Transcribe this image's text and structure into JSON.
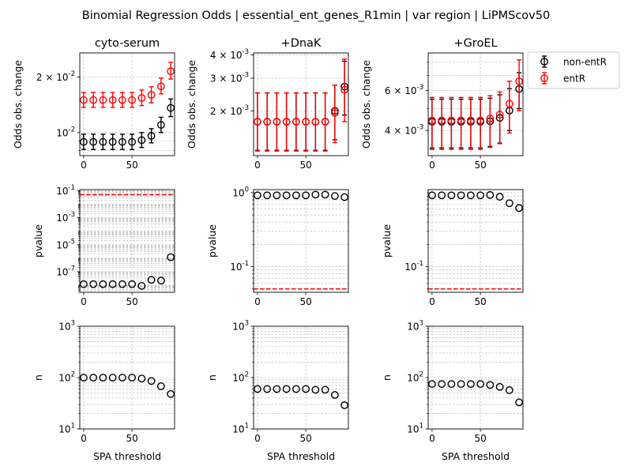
{
  "suptitle": "Binomial Regression Odds | essential_ent_genes_R1min | var region | LiPMScov50",
  "colors": {
    "non_entR": "#000000",
    "entR": "#ff0000",
    "grid": "#b0b0b0"
  },
  "chart_data": [
    {
      "type": "scatter",
      "panel": "odds-cyto-serum",
      "title": "cyto-serum",
      "xlabel": "",
      "ylabel": "Odds obs. change",
      "yscale": "log",
      "xlim": [
        -4,
        94
      ],
      "ylim": [
        0.0075,
        0.027
      ],
      "x_ticks": [
        0,
        50
      ],
      "x_tick_labels": [
        "0",
        "50"
      ],
      "show_x_tick_labels": true,
      "y_ticks": [
        0.01,
        0.02
      ],
      "y_tick_labels": [
        [
          "10",
          "-2",
          ""
        ],
        [
          "2 × 10",
          "-2",
          ""
        ]
      ],
      "grid": true,
      "series": [
        {
          "name": "non-entR",
          "color": "#000000",
          "x": [
            0,
            10,
            20,
            30,
            40,
            50,
            60,
            70,
            80,
            90
          ],
          "y": [
            0.0089,
            0.0089,
            0.0089,
            0.0089,
            0.0089,
            0.0089,
            0.0091,
            0.0096,
            0.011,
            0.0136
          ],
          "err_low": [
            0.0081,
            0.0081,
            0.0081,
            0.0081,
            0.0081,
            0.0081,
            0.0083,
            0.0088,
            0.01,
            0.0122
          ],
          "err_high": [
            0.0098,
            0.0098,
            0.0098,
            0.0098,
            0.0098,
            0.0098,
            0.01,
            0.0105,
            0.0121,
            0.0152
          ]
        },
        {
          "name": "entR",
          "color": "#ff0000",
          "x": [
            0,
            10,
            20,
            30,
            40,
            50,
            60,
            70,
            80,
            90
          ],
          "y": [
            0.015,
            0.015,
            0.015,
            0.015,
            0.015,
            0.015,
            0.0154,
            0.016,
            0.0178,
            0.0215
          ],
          "err_low": [
            0.0137,
            0.0137,
            0.0137,
            0.0137,
            0.0137,
            0.0137,
            0.014,
            0.0145,
            0.0162,
            0.0195
          ],
          "err_high": [
            0.0165,
            0.0165,
            0.0165,
            0.0165,
            0.0165,
            0.0165,
            0.017,
            0.0177,
            0.0197,
            0.024
          ]
        }
      ],
      "hlines": []
    },
    {
      "type": "scatter",
      "panel": "odds-dnak",
      "title": "+DnaK",
      "xlabel": "",
      "ylabel": "Odds obs. change",
      "yscale": "log",
      "xlim": [
        -4,
        94
      ],
      "ylim": [
        0.00115,
        0.0041
      ],
      "x_ticks": [
        0,
        50
      ],
      "x_tick_labels": [
        "0",
        "50"
      ],
      "show_x_tick_labels": true,
      "y_ticks": [
        0.002,
        0.003,
        0.004
      ],
      "y_tick_labels": [
        [
          "2 × 10",
          "-3",
          ""
        ],
        [
          "3 × 10",
          "-3",
          ""
        ],
        [
          "4 × 10",
          "-3",
          ""
        ]
      ],
      "grid": true,
      "series": [
        {
          "name": "non-entR",
          "color": "#000000",
          "x": [
            0,
            10,
            20,
            30,
            40,
            50,
            60,
            70,
            80,
            90
          ],
          "y": [
            0.00175,
            0.00175,
            0.00175,
            0.00175,
            0.00175,
            0.00175,
            0.00175,
            0.00175,
            0.002,
            0.0027
          ],
          "err_low": [
            0.00122,
            0.00122,
            0.00122,
            0.00122,
            0.00122,
            0.00122,
            0.00122,
            0.00122,
            0.0014,
            0.0019
          ],
          "err_high": [
            0.0025,
            0.0025,
            0.0025,
            0.0025,
            0.0025,
            0.0025,
            0.0025,
            0.0025,
            0.00275,
            0.0037
          ]
        },
        {
          "name": "entR",
          "color": "#ff0000",
          "x": [
            0,
            10,
            20,
            30,
            40,
            50,
            60,
            70,
            80,
            90
          ],
          "y": [
            0.00175,
            0.00175,
            0.00175,
            0.00175,
            0.00175,
            0.00175,
            0.00175,
            0.00175,
            0.00195,
            0.0026
          ],
          "err_low": [
            0.00123,
            0.00123,
            0.00123,
            0.00123,
            0.00123,
            0.00123,
            0.00123,
            0.00123,
            0.00135,
            0.00175
          ],
          "err_high": [
            0.0025,
            0.0025,
            0.0025,
            0.0025,
            0.0025,
            0.0025,
            0.0025,
            0.0025,
            0.00275,
            0.0038
          ]
        }
      ],
      "hlines": []
    },
    {
      "type": "scatter",
      "panel": "odds-groel",
      "title": "+GroEL",
      "xlabel": "",
      "ylabel": "Odds obs. change",
      "yscale": "log",
      "xlim": [
        -4,
        94
      ],
      "ylim": [
        0.0031,
        0.0088
      ],
      "x_ticks": [
        0,
        50
      ],
      "x_tick_labels": [
        "0",
        "50"
      ],
      "show_x_tick_labels": true,
      "y_ticks": [
        0.004,
        0.006
      ],
      "y_tick_labels": [
        [
          "4 × 10",
          "-3",
          ""
        ],
        [
          "6 × 10",
          "-3",
          ""
        ]
      ],
      "grid": true,
      "series": [
        {
          "name": "non-entR",
          "color": "#000000",
          "x": [
            0,
            10,
            20,
            30,
            40,
            50,
            60,
            70,
            80,
            90
          ],
          "y": [
            0.00437,
            0.00437,
            0.00437,
            0.00437,
            0.00437,
            0.00437,
            0.0044,
            0.00455,
            0.0049,
            0.0061
          ],
          "err_low": [
            0.00335,
            0.00335,
            0.00335,
            0.00335,
            0.00335,
            0.00335,
            0.0034,
            0.00352,
            0.004,
            0.005
          ],
          "err_high": [
            0.0055,
            0.0055,
            0.0055,
            0.0055,
            0.0055,
            0.0055,
            0.00555,
            0.00575,
            0.00612,
            0.0072
          ]
        },
        {
          "name": "entR",
          "color": "#ff0000",
          "x": [
            0,
            10,
            20,
            30,
            40,
            50,
            60,
            70,
            80,
            90
          ],
          "y": [
            0.00443,
            0.00443,
            0.00443,
            0.00443,
            0.00443,
            0.00443,
            0.00452,
            0.0047,
            0.00525,
            0.0066
          ],
          "err_low": [
            0.0033,
            0.0033,
            0.0033,
            0.0033,
            0.0033,
            0.0033,
            0.00337,
            0.0035,
            0.0039,
            0.0049
          ],
          "err_high": [
            0.0056,
            0.0056,
            0.0056,
            0.0056,
            0.0056,
            0.0056,
            0.0057,
            0.00592,
            0.0066,
            0.0082
          ]
        }
      ],
      "hlines": []
    },
    {
      "type": "scatter",
      "panel": "pvalue-cyto-serum",
      "title": "",
      "xlabel": "",
      "ylabel": "pvalue",
      "yscale": "log",
      "xlim": [
        -4,
        94
      ],
      "ylim": [
        3e-09,
        0.12
      ],
      "x_ticks": [
        0,
        50
      ],
      "x_tick_labels": [
        "0",
        "50"
      ],
      "show_x_tick_labels": true,
      "y_ticks": [
        1e-07,
        1e-05,
        0.001,
        0.1
      ],
      "y_tick_labels": [
        [
          "10",
          "-7",
          ""
        ],
        [
          "10",
          "-5",
          ""
        ],
        [
          "10",
          "-3",
          ""
        ],
        [
          "10",
          "-1",
          ""
        ]
      ],
      "grid": true,
      "series": [
        {
          "name": "",
          "color": "#000000",
          "x": [
            0,
            10,
            20,
            30,
            40,
            50,
            60,
            70,
            80,
            90
          ],
          "y": [
            1.2e-08,
            1.2e-08,
            1.2e-08,
            1.2e-08,
            1.2e-08,
            1.2e-08,
            9e-09,
            2.5e-08,
            2.2e-08,
            1.2e-06
          ]
        }
      ],
      "hlines": [
        {
          "y": 0.05,
          "color": "#ff0000",
          "style": "dashed"
        }
      ]
    },
    {
      "type": "scatter",
      "panel": "pvalue-dnak",
      "title": "",
      "xlabel": "",
      "ylabel": "pvalue",
      "yscale": "log",
      "xlim": [
        -4,
        94
      ],
      "ylim": [
        0.045,
        1.1
      ],
      "x_ticks": [
        0,
        50
      ],
      "x_tick_labels": [
        "0",
        "50"
      ],
      "show_x_tick_labels": true,
      "y_ticks": [
        0.1,
        1
      ],
      "y_tick_labels": [
        [
          "10",
          "-1",
          ""
        ],
        [
          "10",
          "0",
          ""
        ]
      ],
      "grid": true,
      "series": [
        {
          "name": "",
          "color": "#000000",
          "x": [
            0,
            10,
            20,
            30,
            40,
            50,
            60,
            70,
            80,
            90
          ],
          "y": [
            0.92,
            0.92,
            0.92,
            0.92,
            0.92,
            0.92,
            0.94,
            0.94,
            0.9,
            0.87
          ]
        }
      ],
      "hlines": [
        {
          "y": 0.05,
          "color": "#ff0000",
          "style": "dashed"
        }
      ]
    },
    {
      "type": "scatter",
      "panel": "pvalue-groel",
      "title": "",
      "xlabel": "",
      "ylabel": "pvalue",
      "yscale": "log",
      "xlim": [
        -4,
        94
      ],
      "ylim": [
        0.045,
        1.1
      ],
      "x_ticks": [
        0,
        50
      ],
      "x_tick_labels": [
        "0",
        "50"
      ],
      "show_x_tick_labels": true,
      "y_ticks": [
        0.1
      ],
      "y_tick_labels": [
        [
          "10",
          "-1",
          ""
        ]
      ],
      "grid": true,
      "series": [
        {
          "name": "",
          "color": "#000000",
          "x": [
            0,
            10,
            20,
            30,
            40,
            50,
            60,
            70,
            80,
            90
          ],
          "y": [
            0.92,
            0.92,
            0.92,
            0.92,
            0.92,
            0.92,
            0.93,
            0.88,
            0.72,
            0.62
          ]
        }
      ],
      "hlines": [
        {
          "y": 0.05,
          "color": "#ff0000",
          "style": "dashed"
        }
      ]
    },
    {
      "type": "scatter",
      "panel": "n-cyto-serum",
      "title": "",
      "xlabel": "SPA threshold",
      "ylabel": "n",
      "yscale": "log",
      "xlim": [
        -4,
        94
      ],
      "ylim": [
        10,
        1000
      ],
      "x_ticks": [
        0,
        50
      ],
      "x_tick_labels": [
        "0",
        "50"
      ],
      "show_x_tick_labels": true,
      "y_ticks": [
        10,
        100,
        1000
      ],
      "y_tick_labels": [
        [
          "10",
          "1",
          ""
        ],
        [
          "10",
          "2",
          ""
        ],
        [
          "10",
          "3",
          ""
        ]
      ],
      "grid": true,
      "series": [
        {
          "name": "",
          "color": "#000000",
          "x": [
            0,
            10,
            20,
            30,
            40,
            50,
            60,
            70,
            80,
            90
          ],
          "y": [
            100,
            100,
            100,
            100,
            100,
            100,
            96,
            86,
            68,
            48
          ]
        }
      ],
      "hlines": []
    },
    {
      "type": "scatter",
      "panel": "n-dnak",
      "title": "",
      "xlabel": "SPA threshold",
      "ylabel": "n",
      "yscale": "log",
      "xlim": [
        -4,
        94
      ],
      "ylim": [
        10,
        1000
      ],
      "x_ticks": [
        0,
        50
      ],
      "x_tick_labels": [
        "0",
        "50"
      ],
      "show_x_tick_labels": true,
      "y_ticks": [
        10,
        100,
        1000
      ],
      "y_tick_labels": [
        [
          "10",
          "1",
          ""
        ],
        [
          "10",
          "2",
          ""
        ],
        [
          "10",
          "3",
          ""
        ]
      ],
      "grid": true,
      "series": [
        {
          "name": "",
          "color": "#000000",
          "x": [
            0,
            10,
            20,
            30,
            40,
            50,
            60,
            70,
            80,
            90
          ],
          "y": [
            60,
            60,
            60,
            60,
            60,
            60,
            58,
            58,
            46,
            29
          ]
        }
      ],
      "hlines": []
    },
    {
      "type": "scatter",
      "panel": "n-groel",
      "title": "",
      "xlabel": "SPA threshold",
      "ylabel": "n",
      "yscale": "log",
      "xlim": [
        -4,
        94
      ],
      "ylim": [
        10,
        1000
      ],
      "x_ticks": [
        0,
        50
      ],
      "x_tick_labels": [
        "0",
        "50"
      ],
      "show_x_tick_labels": true,
      "y_ticks": [
        10,
        100,
        1000
      ],
      "y_tick_labels": [
        [
          "10",
          "1",
          ""
        ],
        [
          "10",
          "2",
          ""
        ],
        [
          "10",
          "3",
          ""
        ]
      ],
      "grid": true,
      "series": [
        {
          "name": "",
          "color": "#000000",
          "x": [
            0,
            10,
            20,
            30,
            40,
            50,
            60,
            70,
            80,
            90
          ],
          "y": [
            75,
            75,
            75,
            75,
            75,
            75,
            72,
            66,
            57,
            33
          ]
        }
      ],
      "hlines": []
    }
  ],
  "legend": {
    "placement": "right of top-right panel",
    "entries": [
      {
        "label": "non-entR",
        "color": "#000000"
      },
      {
        "label": "entR",
        "color": "#ff0000"
      }
    ]
  }
}
